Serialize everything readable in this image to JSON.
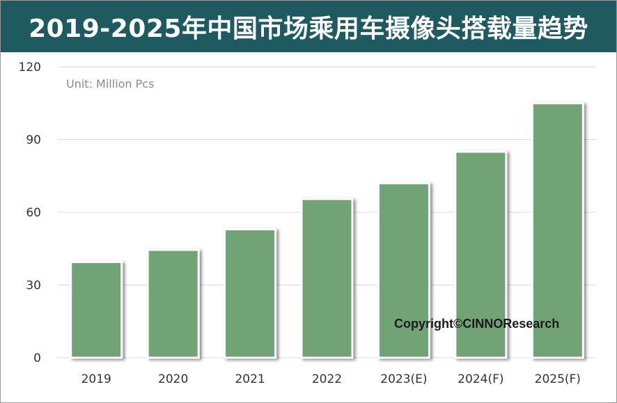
{
  "header": {
    "title": "2019-2025年中国市场乘用车摄像头搭载量趋势"
  },
  "colors": {
    "title_bg": "#1e5a5f",
    "bar": "#72a377",
    "bar_border": "#ffffff",
    "grid": "#d9d9d9"
  },
  "unit_label": "Unit: Million Pcs",
  "copyright": "Copyright©CINNOResearch",
  "chart_data": {
    "type": "bar",
    "title": "2019-2025年中国市场乘用车摄像头搭载量趋势",
    "xlabel": "",
    "ylabel": "Unit: Million Pcs",
    "categories": [
      "2019",
      "2020",
      "2021",
      "2022",
      "2023(E)",
      "2024(F)",
      "2025(F)"
    ],
    "values": [
      39.5,
      44.5,
      53,
      65.5,
      72,
      85,
      105
    ],
    "ylim": [
      0,
      120
    ],
    "yticks": [
      "0",
      "30",
      "60",
      "90",
      "120"
    ],
    "grid": true,
    "legend": "none"
  }
}
